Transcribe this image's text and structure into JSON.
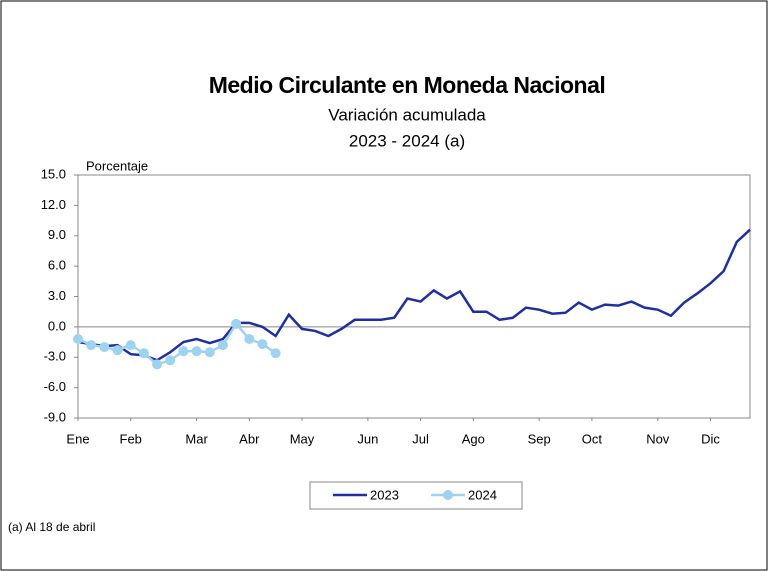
{
  "chart_data": {
    "type": "line",
    "title": "Medio Circulante en Moneda Nacional",
    "subtitle": "Variación acumulada",
    "period": "2023 - 2024 (a)",
    "y_label": "Porcentaje",
    "footnote": "(a) Al 18 de abril",
    "x": [
      0,
      1,
      2,
      3,
      4,
      5,
      6,
      7,
      8,
      9,
      10,
      11,
      12,
      13,
      14,
      15,
      16,
      17,
      18,
      19,
      20,
      21,
      22,
      23,
      24,
      25,
      26,
      27,
      28,
      29,
      30,
      31,
      32,
      33,
      34,
      35,
      36,
      37,
      38,
      39,
      40,
      41,
      42,
      43,
      44,
      45,
      46,
      47,
      48,
      49,
      50,
      51
    ],
    "xlim": [
      0,
      51
    ],
    "xticks": [
      {
        "value": 0,
        "label": "Ene"
      },
      {
        "value": 4,
        "label": "Feb"
      },
      {
        "value": 9,
        "label": "Mar"
      },
      {
        "value": 13,
        "label": "Abr"
      },
      {
        "value": 17,
        "label": "May"
      },
      {
        "value": 22,
        "label": "Jun"
      },
      {
        "value": 26,
        "label": "Jul"
      },
      {
        "value": 30,
        "label": "Ago"
      },
      {
        "value": 35,
        "label": "Sep"
      },
      {
        "value": 39,
        "label": "Oct"
      },
      {
        "value": 44,
        "label": "Nov"
      },
      {
        "value": 48,
        "label": "Dic"
      }
    ],
    "ylim": [
      -9,
      15
    ],
    "yticks": [
      {
        "value": 15,
        "label": "15.0"
      },
      {
        "value": 12,
        "label": "12.0"
      },
      {
        "value": 9,
        "label": "9.0"
      },
      {
        "value": 6,
        "label": "6.0"
      },
      {
        "value": 3,
        "label": "3.0"
      },
      {
        "value": 0,
        "label": "0.0"
      },
      {
        "value": -3,
        "label": "-3.0"
      },
      {
        "value": -6,
        "label": "-6.0"
      },
      {
        "value": -9,
        "label": "-9.0"
      }
    ],
    "legend": "bottom",
    "series": [
      {
        "name": "2023",
        "color": "#1f2f9e",
        "markers": false,
        "values": [
          -1.5,
          -1.7,
          -1.9,
          -1.8,
          -2.7,
          -2.8,
          -3.3,
          -2.5,
          -1.5,
          -1.2,
          -1.6,
          -1.2,
          0.4,
          0.4,
          0.0,
          -0.9,
          1.2,
          -0.2,
          -0.4,
          -0.9,
          -0.2,
          0.7,
          0.7,
          0.7,
          0.9,
          2.8,
          2.5,
          3.6,
          2.8,
          3.5,
          1.5,
          1.5,
          0.7,
          0.9,
          1.9,
          1.7,
          1.3,
          1.4,
          2.4,
          1.7,
          2.2,
          2.1,
          2.5,
          1.9,
          1.7,
          1.1,
          2.4,
          3.3,
          4.3,
          5.5,
          8.4,
          9.6
        ]
      },
      {
        "name": "2024",
        "color": "#9dd3ef",
        "markers": true,
        "values": [
          -1.2,
          -1.8,
          -2.0,
          -2.3,
          -1.8,
          -2.6,
          -3.7,
          -3.3,
          -2.4,
          -2.4,
          -2.5,
          -1.8,
          0.3,
          -1.2,
          -1.7,
          -2.6,
          null,
          null,
          null,
          null,
          null,
          null,
          null,
          null,
          null,
          null,
          null,
          null,
          null,
          null,
          null,
          null,
          null,
          null,
          null,
          null,
          null,
          null,
          null,
          null,
          null,
          null,
          null,
          null,
          null,
          null,
          null,
          null,
          null,
          null,
          null,
          null
        ]
      }
    ]
  }
}
